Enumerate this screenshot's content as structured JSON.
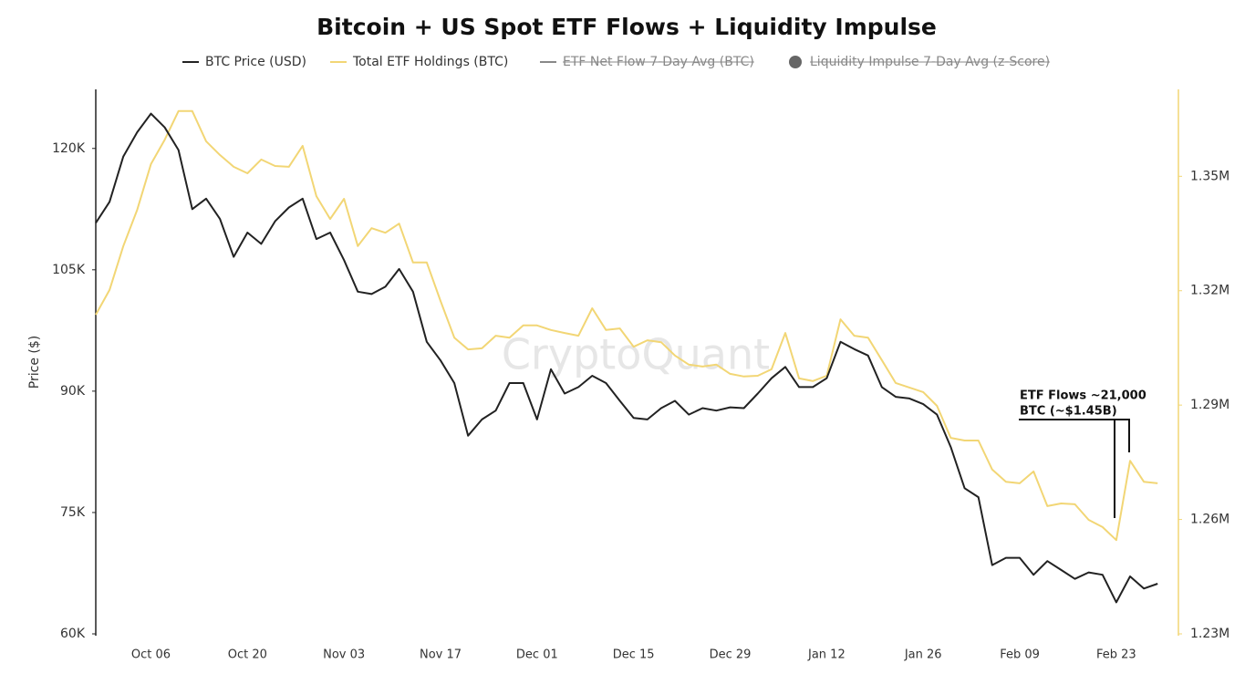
{
  "chart_data": {
    "type": "line",
    "title": "Bitcoin + US Spot ETF Flows + Liquidity Impulse",
    "y_label": "Price ($)",
    "watermark": "CryptoQuant",
    "annotation": [
      "ETF Flows ~21,000",
      "BTC (~$1.45B)"
    ],
    "categories": [
      null,
      null,
      null,
      null,
      "Oct 06",
      null,
      null,
      null,
      null,
      null,
      null,
      "Oct 20",
      null,
      null,
      null,
      null,
      null,
      null,
      "Nov 03",
      null,
      null,
      null,
      null,
      null,
      null,
      "Nov 17",
      null,
      null,
      null,
      null,
      null,
      null,
      "Dec 01",
      null,
      null,
      null,
      null,
      null,
      null,
      "Dec 15",
      null,
      null,
      null,
      null,
      null,
      null,
      "Dec 29",
      null,
      null,
      null,
      null,
      null,
      null,
      "Jan 12",
      null,
      null,
      null,
      null,
      null,
      null,
      "Jan 26",
      null,
      null,
      null,
      null,
      null,
      null,
      "Feb 09",
      null,
      null,
      null,
      null,
      null,
      null,
      "Feb 23",
      null,
      null,
      null
    ],
    "series": [
      {
        "name": "BTC Price (USD)",
        "color": "#222222",
        "values": [
          110800,
          113400,
          119000,
          122000,
          124300,
          122600,
          119800,
          112500,
          113800,
          111300,
          106600,
          109600,
          108200,
          111000,
          112700,
          113800,
          108800,
          109600,
          106200,
          102300,
          102000,
          102900,
          105100,
          102300,
          96100,
          93800,
          91000,
          84500,
          86500,
          87600,
          91000,
          91000,
          86500,
          92700,
          89700,
          90500,
          91900,
          91000,
          88800,
          86700,
          86500,
          87900,
          88800,
          87100,
          87900,
          87600,
          88000,
          87900,
          89700,
          91600,
          93000,
          90500,
          90500,
          91600,
          96100,
          95200,
          94400,
          90500,
          89300,
          89100,
          88400,
          87100,
          83100,
          78000,
          76900,
          68500,
          69400,
          69400,
          67300,
          69000,
          67900,
          66800,
          67600,
          67300,
          63900,
          67100,
          65600,
          66200
        ]
      },
      {
        "name": "Total ETF Holdings (BTC)",
        "color": "#f2d675",
        "axis": "y2",
        "values": [
          1313700,
          1320200,
          1331700,
          1341200,
          1353200,
          1359600,
          1367100,
          1367100,
          1359200,
          1355600,
          1352500,
          1350800,
          1354400,
          1352700,
          1352500,
          1358000,
          1344800,
          1338800,
          1344100,
          1331700,
          1336400,
          1335200,
          1337600,
          1327400,
          1327400,
          1317300,
          1307700,
          1304600,
          1304900,
          1308200,
          1307700,
          1310900,
          1310900,
          1309700,
          1308900,
          1308200,
          1315400,
          1309700,
          1310100,
          1305300,
          1307000,
          1306500,
          1303000,
          1300600,
          1300100,
          1300600,
          1298200,
          1297500,
          1297700,
          1299400,
          1308900,
          1297000,
          1296300,
          1297700,
          1312500,
          1308200,
          1307700,
          1301800,
          1295800,
          1294600,
          1293400,
          1289800,
          1281400,
          1280700,
          1280700,
          1273100,
          1269900,
          1269500,
          1272600,
          1263500,
          1264200,
          1264000,
          1259900,
          1258000,
          1254600,
          1275400,
          1269900,
          1269500
        ]
      },
      {
        "name": "ETF Net Flow 7-Day Avg (BTC)",
        "color": "#888888",
        "marker": "line",
        "hidden": true
      },
      {
        "name": "Liquidity Impulse 7-Day Avg (z-Score)",
        "color": "#666666",
        "marker": "circle",
        "hidden": true
      }
    ],
    "ylim": [
      60000,
      127300
    ],
    "yticks": [
      {
        "value": 60000,
        "label": "60K"
      },
      {
        "value": 75000,
        "label": "75K"
      },
      {
        "value": 90000,
        "label": "90K"
      },
      {
        "value": 105000,
        "label": "105K"
      },
      {
        "value": 120000,
        "label": "120K"
      }
    ],
    "y2lim": [
      1230000,
      1372800
    ],
    "y2ticks": [
      {
        "value": 1230000,
        "label": "1.23M"
      },
      {
        "value": 1260000,
        "label": "1.26M"
      },
      {
        "value": 1290000,
        "label": "1.29M"
      },
      {
        "value": 1320000,
        "label": "1.32M"
      },
      {
        "value": 1350000,
        "label": "1.35M"
      }
    ],
    "grid": false
  }
}
